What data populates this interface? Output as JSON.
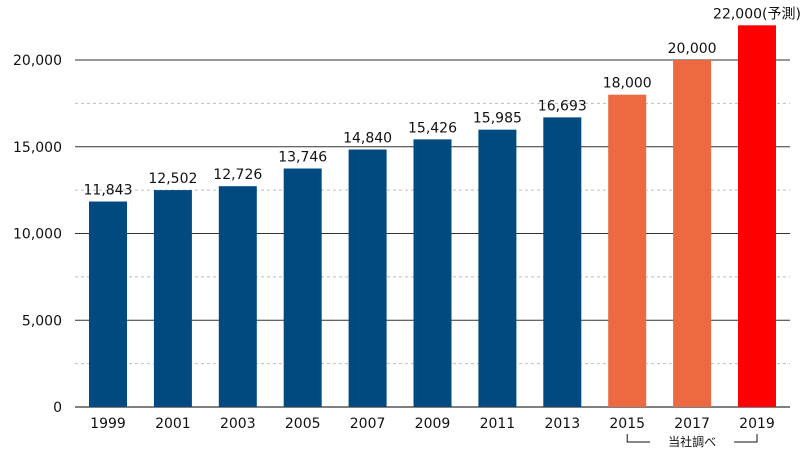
{
  "chart_data": {
    "type": "bar",
    "categories": [
      "1999",
      "2001",
      "2003",
      "2005",
      "2007",
      "2009",
      "2011",
      "2013",
      "2015",
      "2017",
      "2019"
    ],
    "values": [
      11843,
      12502,
      12726,
      13746,
      14840,
      15426,
      15985,
      16693,
      18000,
      20000,
      22000
    ],
    "data_labels": [
      "11,843",
      "12,502",
      "12,726",
      "13,746",
      "14,840",
      "15,426",
      "15,985",
      "16,693",
      "18,000",
      "20,000",
      "22,000(予測)"
    ],
    "bar_colors": [
      "#004a80",
      "#004a80",
      "#004a80",
      "#004a80",
      "#004a80",
      "#004a80",
      "#004a80",
      "#004a80",
      "#ec6941",
      "#ec6941",
      "#ff0000"
    ],
    "ylim": [
      0,
      22000
    ],
    "yticks": [
      0,
      5000,
      10000,
      15000,
      20000
    ],
    "ytick_labels": [
      "0",
      "5,000",
      "10,000",
      "15,000",
      "20,000"
    ],
    "minor_gridlines": [
      2500,
      7500,
      12500,
      17500
    ],
    "grid": true,
    "title": "",
    "xlabel": "",
    "ylabel": "",
    "annotation": "当社調べ",
    "annotation_span": [
      "2015",
      "2019"
    ]
  }
}
